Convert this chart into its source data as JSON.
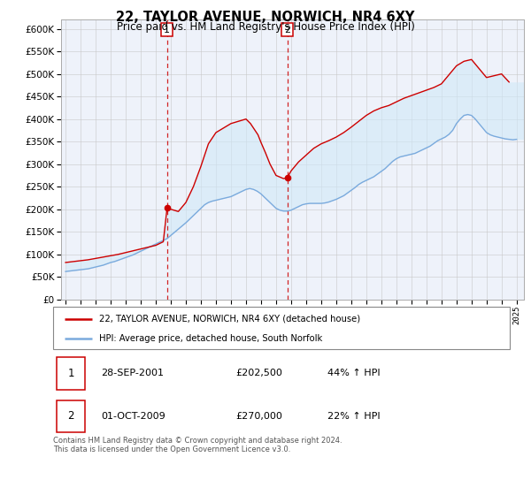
{
  "title": "22, TAYLOR AVENUE, NORWICH, NR4 6XY",
  "subtitle": "Price paid vs. HM Land Registry's House Price Index (HPI)",
  "legend_property": "22, TAYLOR AVENUE, NORWICH, NR4 6XY (detached house)",
  "legend_hpi": "HPI: Average price, detached house, South Norfolk",
  "footer": "Contains HM Land Registry data © Crown copyright and database right 2024.\nThis data is licensed under the Open Government Licence v3.0.",
  "transactions": [
    {
      "num": "1",
      "date": "28-SEP-2001",
      "price": "£202,500",
      "hpi": "44% ↑ HPI"
    },
    {
      "num": "2",
      "date": "01-OCT-2009",
      "price": "£270,000",
      "hpi": "22% ↑ HPI"
    }
  ],
  "sale1_year": 2001.75,
  "sale2_year": 2009.75,
  "property_color": "#cc0000",
  "hpi_color": "#7aaadd",
  "shade_color": "#d0e8f8",
  "vline_color": "#cc0000",
  "ylim": [
    0,
    620000
  ],
  "xlim_start": 1994.7,
  "xlim_end": 2025.5,
  "chart_bg": "#eef2fa",
  "hpi_x": [
    1995,
    1995.25,
    1995.5,
    1995.75,
    1996,
    1996.25,
    1996.5,
    1996.75,
    1997,
    1997.25,
    1997.5,
    1997.75,
    1998,
    1998.25,
    1998.5,
    1998.75,
    1999,
    1999.25,
    1999.5,
    1999.75,
    2000,
    2000.25,
    2000.5,
    2000.75,
    2001,
    2001.25,
    2001.5,
    2001.75,
    2002,
    2002.25,
    2002.5,
    2002.75,
    2003,
    2003.25,
    2003.5,
    2003.75,
    2004,
    2004.25,
    2004.5,
    2004.75,
    2005,
    2005.25,
    2005.5,
    2005.75,
    2006,
    2006.25,
    2006.5,
    2006.75,
    2007,
    2007.25,
    2007.5,
    2007.75,
    2008,
    2008.25,
    2008.5,
    2008.75,
    2009,
    2009.25,
    2009.5,
    2009.75,
    2010,
    2010.25,
    2010.5,
    2010.75,
    2011,
    2011.25,
    2011.5,
    2011.75,
    2012,
    2012.25,
    2012.5,
    2012.75,
    2013,
    2013.25,
    2013.5,
    2013.75,
    2014,
    2014.25,
    2014.5,
    2014.75,
    2015,
    2015.25,
    2015.5,
    2015.75,
    2016,
    2016.25,
    2016.5,
    2016.75,
    2017,
    2017.25,
    2017.5,
    2017.75,
    2018,
    2018.25,
    2018.5,
    2018.75,
    2019,
    2019.25,
    2019.5,
    2019.75,
    2020,
    2020.25,
    2020.5,
    2020.75,
    2021,
    2021.25,
    2021.5,
    2021.75,
    2022,
    2022.25,
    2022.5,
    2022.75,
    2023,
    2023.25,
    2023.5,
    2023.75,
    2024,
    2024.25,
    2024.5,
    2024.75,
    2025
  ],
  "hpi_y": [
    62000,
    63000,
    64000,
    65000,
    66000,
    67000,
    68000,
    70000,
    72000,
    74000,
    76000,
    79000,
    82000,
    84000,
    87000,
    90000,
    93000,
    96000,
    99000,
    103000,
    107000,
    111000,
    115000,
    119000,
    123000,
    127000,
    131000,
    135000,
    142000,
    149000,
    156000,
    163000,
    170000,
    178000,
    186000,
    194000,
    202000,
    210000,
    215000,
    218000,
    220000,
    222000,
    224000,
    226000,
    228000,
    232000,
    236000,
    240000,
    244000,
    246000,
    244000,
    240000,
    234000,
    226000,
    218000,
    210000,
    202000,
    198000,
    196000,
    196000,
    198000,
    202000,
    206000,
    210000,
    212000,
    213000,
    213000,
    213000,
    213000,
    214000,
    216000,
    219000,
    222000,
    226000,
    230000,
    236000,
    242000,
    248000,
    255000,
    260000,
    264000,
    268000,
    272000,
    278000,
    284000,
    290000,
    298000,
    306000,
    312000,
    316000,
    318000,
    320000,
    322000,
    324000,
    328000,
    332000,
    336000,
    340000,
    346000,
    352000,
    356000,
    360000,
    366000,
    375000,
    390000,
    400000,
    408000,
    410000,
    408000,
    400000,
    390000,
    380000,
    370000,
    365000,
    362000,
    360000,
    358000,
    356000,
    355000,
    354000,
    355000
  ],
  "prop_x": [
    1995.0,
    1995.5,
    1996.0,
    1996.5,
    1997.0,
    1997.5,
    1998.0,
    1998.5,
    1999.0,
    1999.5,
    2000.0,
    2000.5,
    2001.0,
    2001.5,
    2001.75,
    2002.5,
    2003.0,
    2003.5,
    2004.0,
    2004.5,
    2005.0,
    2005.5,
    2006.0,
    2006.5,
    2007.0,
    2007.3,
    2007.5,
    2007.8,
    2008.0,
    2008.3,
    2008.6,
    2009.0,
    2009.5,
    2009.75,
    2010.0,
    2010.5,
    2011.0,
    2011.5,
    2012.0,
    2012.5,
    2013.0,
    2013.5,
    2014.0,
    2014.5,
    2015.0,
    2015.5,
    2016.0,
    2016.5,
    2017.0,
    2017.5,
    2018.0,
    2018.5,
    2019.0,
    2019.5,
    2020.0,
    2020.5,
    2021.0,
    2021.5,
    2022.0,
    2022.5,
    2023.0,
    2023.5,
    2024.0,
    2024.5
  ],
  "prop_y": [
    82000,
    84000,
    86000,
    88000,
    91000,
    94000,
    97000,
    100000,
    104000,
    108000,
    112000,
    116000,
    120000,
    128000,
    202500,
    195000,
    215000,
    250000,
    295000,
    345000,
    370000,
    380000,
    390000,
    395000,
    400000,
    390000,
    380000,
    365000,
    348000,
    325000,
    300000,
    275000,
    268000,
    270000,
    285000,
    305000,
    320000,
    335000,
    345000,
    352000,
    360000,
    370000,
    382000,
    395000,
    408000,
    418000,
    425000,
    430000,
    438000,
    446000,
    452000,
    458000,
    464000,
    470000,
    478000,
    498000,
    518000,
    528000,
    532000,
    512000,
    492000,
    496000,
    500000,
    482000
  ]
}
